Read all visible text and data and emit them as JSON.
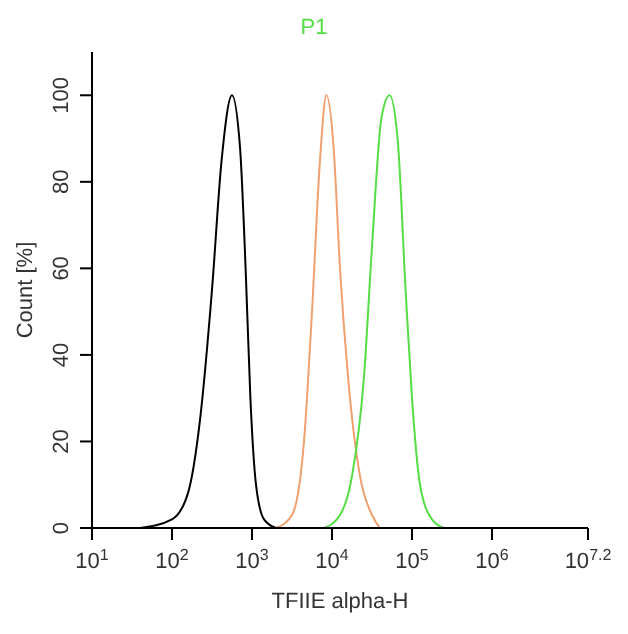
{
  "chart_data": {
    "type": "line",
    "title": "P1",
    "xlabel": "TFIIE alpha-H",
    "ylabel": "Count [%]",
    "log": "x",
    "xlim": [
      10,
      15848932
    ],
    "xticks": [
      {
        "value": 10,
        "label": "10$^{1}$"
      },
      {
        "value": 100,
        "label": "10$^{2}$"
      },
      {
        "value": 1000,
        "label": "10$^{3}$"
      },
      {
        "value": 10000,
        "label": "10$^{4}$"
      },
      {
        "value": 100000,
        "label": "10$^{5}$"
      },
      {
        "value": 1000000,
        "label": "10$^{6}$"
      },
      {
        "value": 15848932,
        "label": "10$^{7.2}$"
      }
    ],
    "ylim": [
      0,
      110
    ],
    "yticks": [
      0,
      20,
      40,
      60,
      80,
      100
    ],
    "marker": "none",
    "line_style": "solid",
    "series": [
      {
        "color": "#000000",
        "x": [
          40,
          100,
          158,
          224,
          316,
          417,
          562,
          708,
          832,
          955,
          1122,
          1413,
          1995
        ],
        "values": [
          0,
          2,
          8,
          25,
          55,
          85,
          100,
          88,
          60,
          30,
          10,
          2,
          0
        ]
      },
      {
        "color": "#f0a070",
        "x": [
          1995,
          3162,
          4467,
          5623,
          7079,
          8511,
          10471,
          12589,
          15849,
          22387,
          31623,
          39811
        ],
        "values": [
          0,
          3,
          20,
          50,
          85,
          100,
          88,
          60,
          35,
          12,
          3,
          0
        ]
      },
      {
        "color": "#55dd44",
        "x": [
          7943,
          12589,
          17783,
          25119,
          31623,
          41687,
          52481,
          66069,
          83176,
          100000,
          125893,
          177828,
          251189
        ],
        "values": [
          0,
          3,
          12,
          35,
          65,
          95,
          100,
          90,
          55,
          30,
          10,
          2,
          0
        ]
      }
    ]
  }
}
